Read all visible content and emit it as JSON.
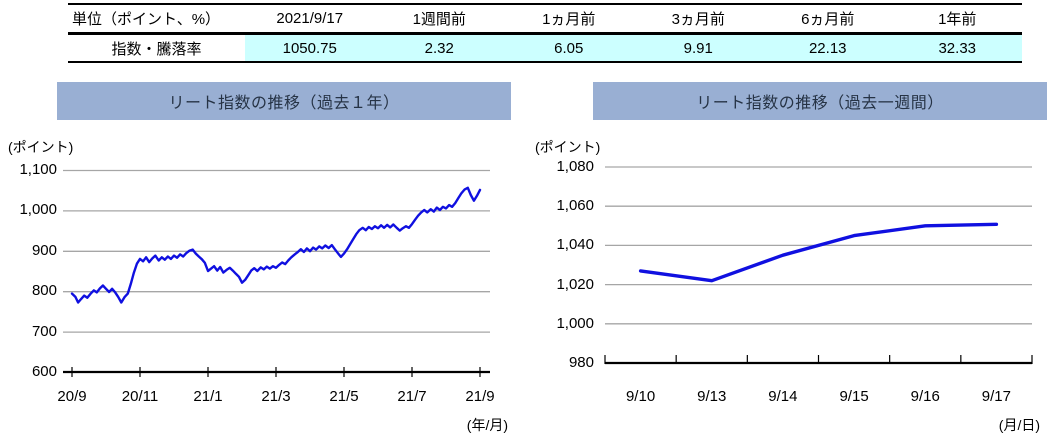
{
  "table": {
    "unit_header": "単位（ポイント、%）",
    "col_headers": [
      "2021/9/17",
      "1週間前",
      "1ヵ月前",
      "3ヵ月前",
      "6ヵ月前",
      "1年前"
    ],
    "row_label": "指数・騰落率",
    "row_values": [
      "1050.75",
      "2.32",
      "6.05",
      "9.91",
      "22.13",
      "32.33"
    ]
  },
  "colors": {
    "title_bar_bg": "#99AFD3",
    "title_text": "#263345",
    "line": "#1010E0",
    "grid": "#A6A6A6",
    "axis": "#000000",
    "highlight_cell_bg": "#CCFFFF"
  },
  "chart_data": [
    {
      "type": "line",
      "title": "リート指数の推移（過去１年）",
      "unit_label": "(ポイント)",
      "xaxis_label": "(年/月)",
      "x_ticks": [
        "20/9",
        "20/11",
        "21/1",
        "21/3",
        "21/5",
        "21/7",
        "21/9"
      ],
      "y_ticks": [
        "1,100",
        "1,000",
        "900",
        "800",
        "700",
        "600"
      ],
      "ylim": [
        600,
        1100
      ],
      "x_unit": "months from 2020/9/17",
      "xlim": [
        0,
        12
      ],
      "grid": true,
      "legend": "none",
      "points": [
        [
          0,
          794
        ],
        [
          0.1,
          786
        ],
        [
          0.18,
          772
        ],
        [
          0.27,
          781
        ],
        [
          0.36,
          789
        ],
        [
          0.45,
          784
        ],
        [
          0.55,
          794
        ],
        [
          0.64,
          802
        ],
        [
          0.73,
          797
        ],
        [
          0.82,
          807
        ],
        [
          0.91,
          814
        ],
        [
          1.0,
          806
        ],
        [
          1.09,
          798
        ],
        [
          1.18,
          806
        ],
        [
          1.27,
          797
        ],
        [
          1.36,
          786
        ],
        [
          1.45,
          772
        ],
        [
          1.55,
          786
        ],
        [
          1.64,
          794
        ],
        [
          1.73,
          818
        ],
        [
          1.82,
          846
        ],
        [
          1.91,
          868
        ],
        [
          2.0,
          880
        ],
        [
          2.09,
          874
        ],
        [
          2.18,
          884
        ],
        [
          2.27,
          872
        ],
        [
          2.36,
          881
        ],
        [
          2.45,
          888
        ],
        [
          2.55,
          876
        ],
        [
          2.64,
          884
        ],
        [
          2.73,
          878
        ],
        [
          2.82,
          886
        ],
        [
          2.91,
          880
        ],
        [
          3.0,
          888
        ],
        [
          3.09,
          883
        ],
        [
          3.18,
          891
        ],
        [
          3.27,
          886
        ],
        [
          3.36,
          894
        ],
        [
          3.45,
          900
        ],
        [
          3.55,
          903
        ],
        [
          3.64,
          893
        ],
        [
          3.73,
          886
        ],
        [
          3.82,
          879
        ],
        [
          3.91,
          870
        ],
        [
          4.0,
          850
        ],
        [
          4.09,
          856
        ],
        [
          4.18,
          862
        ],
        [
          4.27,
          851
        ],
        [
          4.36,
          860
        ],
        [
          4.45,
          846
        ],
        [
          4.55,
          853
        ],
        [
          4.64,
          858
        ],
        [
          4.73,
          851
        ],
        [
          4.82,
          843
        ],
        [
          4.91,
          836
        ],
        [
          5.0,
          821
        ],
        [
          5.09,
          828
        ],
        [
          5.18,
          839
        ],
        [
          5.27,
          851
        ],
        [
          5.36,
          857
        ],
        [
          5.45,
          850
        ],
        [
          5.55,
          859
        ],
        [
          5.64,
          854
        ],
        [
          5.73,
          861
        ],
        [
          5.82,
          856
        ],
        [
          5.91,
          862
        ],
        [
          6.0,
          858
        ],
        [
          6.09,
          865
        ],
        [
          6.18,
          871
        ],
        [
          6.27,
          867
        ],
        [
          6.36,
          876
        ],
        [
          6.45,
          884
        ],
        [
          6.55,
          891
        ],
        [
          6.64,
          897
        ],
        [
          6.73,
          904
        ],
        [
          6.82,
          897
        ],
        [
          6.91,
          906
        ],
        [
          7.0,
          899
        ],
        [
          7.09,
          908
        ],
        [
          7.18,
          903
        ],
        [
          7.27,
          911
        ],
        [
          7.36,
          906
        ],
        [
          7.45,
          913
        ],
        [
          7.55,
          907
        ],
        [
          7.64,
          914
        ],
        [
          7.73,
          904
        ],
        [
          7.82,
          894
        ],
        [
          7.91,
          885
        ],
        [
          8.0,
          893
        ],
        [
          8.09,
          904
        ],
        [
          8.18,
          916
        ],
        [
          8.27,
          929
        ],
        [
          8.36,
          941
        ],
        [
          8.45,
          951
        ],
        [
          8.55,
          957
        ],
        [
          8.64,
          951
        ],
        [
          8.73,
          959
        ],
        [
          8.82,
          954
        ],
        [
          8.91,
          961
        ],
        [
          9.0,
          956
        ],
        [
          9.09,
          963
        ],
        [
          9.18,
          957
        ],
        [
          9.27,
          964
        ],
        [
          9.36,
          958
        ],
        [
          9.45,
          965
        ],
        [
          9.55,
          957
        ],
        [
          9.64,
          950
        ],
        [
          9.73,
          956
        ],
        [
          9.82,
          961
        ],
        [
          9.91,
          957
        ],
        [
          10.0,
          966
        ],
        [
          10.09,
          977
        ],
        [
          10.18,
          987
        ],
        [
          10.27,
          995
        ],
        [
          10.36,
          1001
        ],
        [
          10.45,
          995
        ],
        [
          10.55,
          1003
        ],
        [
          10.64,
          997
        ],
        [
          10.73,
          1007
        ],
        [
          10.82,
          1001
        ],
        [
          10.91,
          1009
        ],
        [
          11.0,
          1005
        ],
        [
          11.09,
          1013
        ],
        [
          11.18,
          1009
        ],
        [
          11.27,
          1018
        ],
        [
          11.36,
          1030
        ],
        [
          11.45,
          1042
        ],
        [
          11.55,
          1052
        ],
        [
          11.64,
          1056
        ],
        [
          11.73,
          1038
        ],
        [
          11.82,
          1024
        ],
        [
          11.91,
          1036
        ],
        [
          12.0,
          1050.75
        ]
      ]
    },
    {
      "type": "line",
      "title": "リート指数の推移（過去一週間）",
      "unit_label": "(ポイント)",
      "xaxis_label": "(月/日)",
      "categories": [
        "9/10",
        "9/13",
        "9/14",
        "9/15",
        "9/16",
        "9/17"
      ],
      "values": [
        1027,
        1022,
        1035,
        1045,
        1050,
        1050.75
      ],
      "y_ticks": [
        "1,080",
        "1,060",
        "1,040",
        "1,020",
        "1,000",
        "980"
      ],
      "ylim": [
        980,
        1080
      ],
      "grid": true,
      "legend": "none"
    }
  ]
}
